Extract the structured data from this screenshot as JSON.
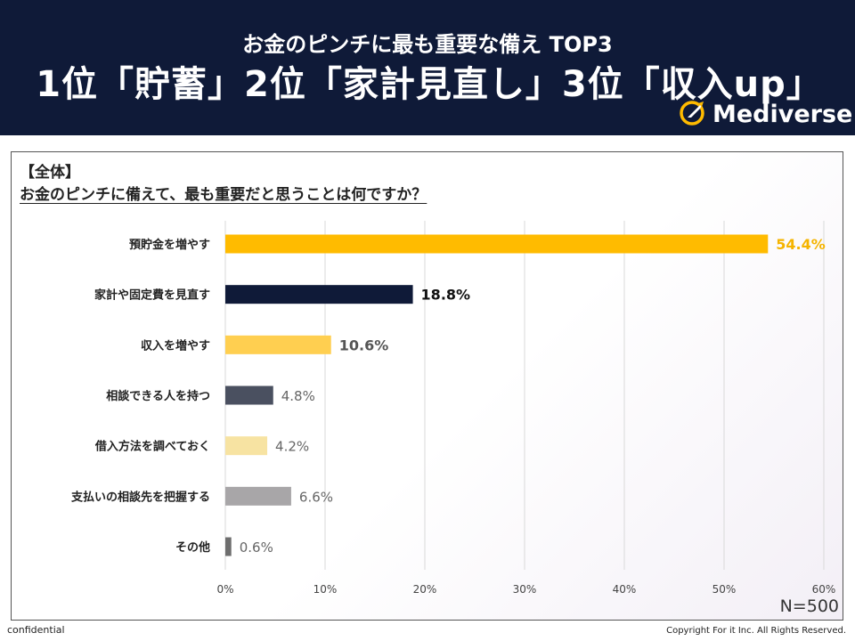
{
  "banner": {
    "subtitle": "お金のピンチに最も重要な備え TOP3",
    "headline": "1位「貯蓄」2位「家計見直し」3位「収入up」",
    "logo_text": "Mediverse"
  },
  "chart_data": {
    "type": "bar",
    "orientation": "horizontal",
    "title": "【全体】",
    "subtitle": "お金のピンチに備えて、最も重要だと思うことは何ですか？",
    "categories": [
      "預貯金を増やす",
      "家計や固定費を見直す",
      "収入を増やす",
      "相談できる人を持つ",
      "借入方法を調べておく",
      "支払いの相談先を把握する",
      "その他"
    ],
    "values": [
      54.4,
      18.8,
      10.6,
      4.8,
      4.2,
      6.6,
      0.6
    ],
    "value_labels": [
      "54.4%",
      "18.8%",
      "10.6%",
      "4.8%",
      "4.2%",
      "6.6%",
      "0.6%"
    ],
    "bar_colors": [
      "#ffbb00",
      "#0f1a38",
      "#ffcf50",
      "#4a5060",
      "#f7e3a2",
      "#a8a6a8",
      "#6e6e6e"
    ],
    "label_colors": [
      "#f5b400",
      "#111111",
      "#555555",
      "#666666",
      "#666666",
      "#666666",
      "#666666"
    ],
    "label_bold": [
      true,
      true,
      true,
      false,
      false,
      false,
      false
    ],
    "xlim": [
      0,
      60
    ],
    "x_ticks": [
      0,
      10,
      20,
      30,
      40,
      50,
      60
    ],
    "x_tick_labels": [
      "0%",
      "10%",
      "20%",
      "30%",
      "40%",
      "50%",
      "60%"
    ],
    "grid": true,
    "xlabel": "",
    "ylabel": "",
    "sample_size": "N=500"
  },
  "footer": {
    "left": "confidential",
    "right": "Copyright For it Inc. All Rights Reserved."
  }
}
